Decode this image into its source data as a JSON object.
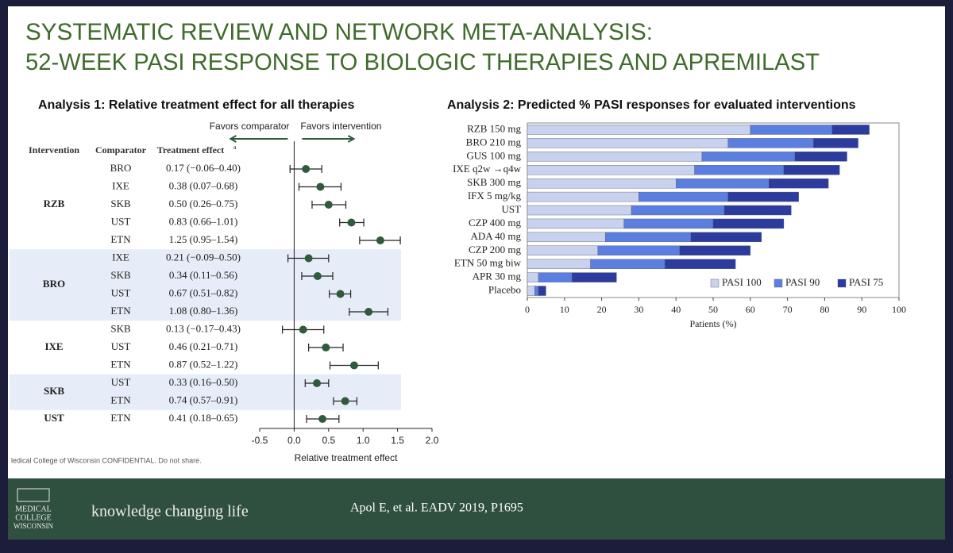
{
  "header": {
    "title_lines": [
      "SYSTEMATIC REVIEW AND NETWORK META-ANALYSIS:",
      "52-WEEK PASI RESPONSE TO BIOLOGIC THERAPIES AND APREMILAST"
    ]
  },
  "chart_data": [
    {
      "type": "forest",
      "title": "Analysis 1: Relative treatment effect for all therapies",
      "column_headers": [
        "Intervention",
        "Comparator",
        "Treatment effect"
      ],
      "header_note": "a",
      "favors": [
        "Favors comparator",
        "Favors intervention"
      ],
      "color": "#2f5a3c",
      "band_color": "#e6edf8",
      "groups": [
        {
          "name": "RZB",
          "shaded": false,
          "comparators": [
            "BRO",
            "IXE",
            "SKB",
            "UST",
            "ETN"
          ],
          "values": [
            0.17,
            0.38,
            0.5,
            0.83,
            1.25
          ],
          "lower": [
            -0.06,
            0.07,
            0.26,
            0.66,
            0.95
          ],
          "upper": [
            0.4,
            0.68,
            0.75,
            1.01,
            1.54
          ],
          "value_labels": [
            "0.17 (−0.06–0.40)",
            "0.38 (0.07–0.68)",
            "0.50 (0.26–0.75)",
            "0.83 (0.66–1.01)",
            "1.25 (0.95–1.54)"
          ]
        },
        {
          "name": "BRO",
          "shaded": true,
          "comparators": [
            "IXE",
            "SKB",
            "UST",
            "ETN"
          ],
          "values": [
            0.21,
            0.34,
            0.67,
            1.08
          ],
          "lower": [
            -0.09,
            0.11,
            0.51,
            0.8
          ],
          "upper": [
            0.5,
            0.56,
            0.82,
            1.36
          ],
          "value_labels": [
            "0.21 (−0.09–0.50)",
            "0.34 (0.11–0.56)",
            "0.67 (0.51–0.82)",
            "1.08 (0.80–1.36)"
          ]
        },
        {
          "name": "IXE",
          "shaded": false,
          "comparators": [
            "SKB",
            "UST",
            "ETN"
          ],
          "values": [
            0.13,
            0.46,
            0.87
          ],
          "lower": [
            -0.17,
            0.21,
            0.52
          ],
          "upper": [
            0.43,
            0.71,
            1.22
          ],
          "value_labels": [
            "0.13 (−0.17–0.43)",
            "0.46 (0.21–0.71)",
            "0.87 (0.52–1.22)"
          ]
        },
        {
          "name": "SKB",
          "shaded": true,
          "comparators": [
            "UST",
            "ETN"
          ],
          "values": [
            0.33,
            0.74
          ],
          "lower": [
            0.16,
            0.57
          ],
          "upper": [
            0.5,
            0.91
          ],
          "value_labels": [
            "0.33 (0.16–0.50)",
            "0.74 (0.57–0.91)"
          ]
        },
        {
          "name": "UST",
          "shaded": false,
          "comparators": [
            "ETN"
          ],
          "values": [
            0.41
          ],
          "lower": [
            0.18
          ],
          "upper": [
            0.65
          ],
          "value_labels": [
            "0.41 (0.18–0.65)"
          ]
        }
      ],
      "xlim": [
        -0.5,
        2.0
      ],
      "xticks": [
        -0.5,
        {
          "value": 0,
          "label": "0.0"
        },
        0.5,
        {
          "value": 1,
          "label": "1.0"
        },
        1.5,
        {
          "value": 2,
          "label": "2.0"
        }
      ],
      "xlabel": "Relative treatment effect"
    },
    {
      "type": "stacked_barh",
      "title": "Analysis 2: Predicted % PASI responses for evaluated interventions",
      "categories": [
        "RZB 150 mg",
        "BRO 210 mg",
        "GUS 100 mg",
        "IXE q2w →q4w",
        "SKB 300 mg",
        "IFX 5 mg/kg",
        "UST",
        "CZP 400 mg",
        "ADA 40 mg",
        "CZP 200 mg",
        "ETN 50 mg biw",
        "APR 30 mg",
        "Placebo"
      ],
      "series": [
        {
          "name": "PASI 100",
          "color": "#c8d2ee",
          "values": [
            60,
            54,
            47,
            45,
            40,
            30,
            28,
            26,
            21,
            19,
            17,
            3,
            2
          ]
        },
        {
          "name": "PASI 90",
          "color": "#5b7fe0",
          "values": [
            22,
            23,
            25,
            24,
            25,
            24,
            25,
            24,
            23,
            22,
            20,
            9,
            1
          ]
        },
        {
          "name": "PASI 75",
          "color": "#2b3b9e",
          "values": [
            10,
            12,
            14,
            15,
            16,
            19,
            18,
            19,
            19,
            19,
            19,
            12,
            2
          ]
        }
      ],
      "xlim": [
        0,
        100
      ],
      "xticks": [
        0,
        10,
        20,
        30,
        40,
        50,
        60,
        70,
        80,
        90,
        100
      ],
      "xlabel": "Patients (%)",
      "legend": "lower right"
    }
  ],
  "confidential": "ledical College of Wisconsin CONFIDENTIAL. Do not share.",
  "footer": {
    "logo": [
      "MEDICAL",
      "COLLEGE",
      "WISCONSIN"
    ],
    "tagline": "knowledge changing life",
    "citation": "Apol E, et al. EADV 2019, P1695"
  }
}
